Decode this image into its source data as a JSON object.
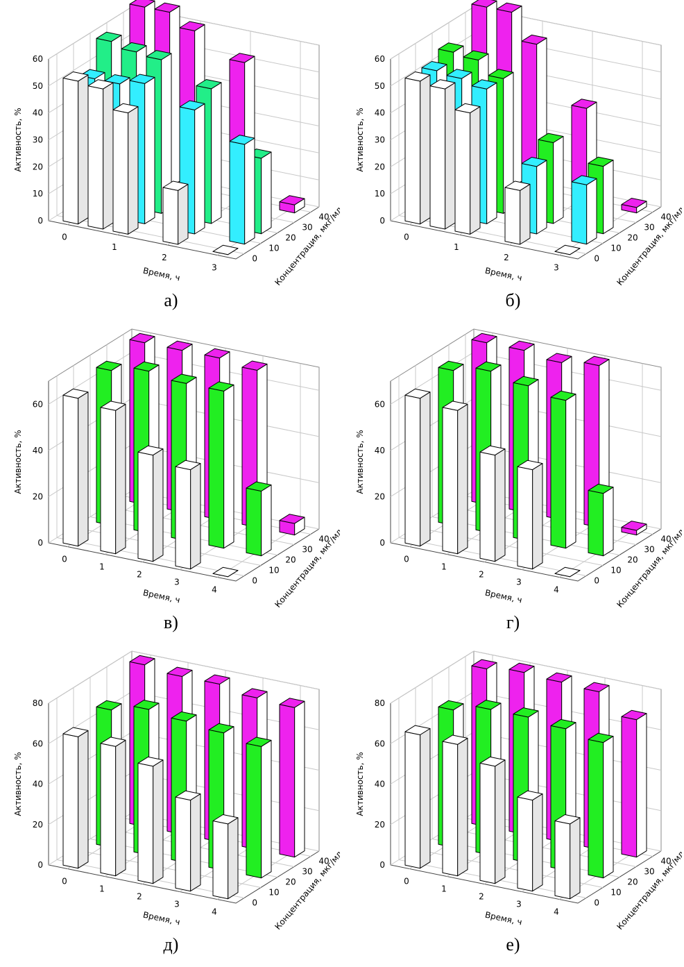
{
  "chart_data": [
    {
      "type": "bar3d",
      "label": "а)",
      "ylabel": "Активность, %",
      "xlabel": "Время, ч",
      "zlabel": "Концентрация, мкг/мл",
      "x": [
        0,
        0.5,
        1,
        2,
        3
      ],
      "xlim": [
        0,
        3
      ],
      "xticks": [
        0,
        1,
        2,
        3
      ],
      "ylim": [
        0,
        60
      ],
      "yticks": [
        0,
        10,
        20,
        30,
        40,
        50,
        60
      ],
      "zlim": [
        0,
        40
      ],
      "zticks": [
        0,
        10,
        20,
        30,
        40
      ],
      "series": [
        {
          "z": 0,
          "color": "#ffffff",
          "values": [
            53,
            52,
            45,
            20,
            0
          ]
        },
        {
          "z": 10,
          "color": "#33eeff",
          "values": [
            50,
            50,
            52,
            46,
            37
          ]
        },
        {
          "z": 20,
          "color": "#22ee88",
          "values": [
            60,
            58,
            57,
            50,
            28
          ]
        },
        {
          "z": 40,
          "color": "#ee22ee",
          "values": [
            65,
            65,
            60,
            52,
            3
          ]
        }
      ]
    },
    {
      "type": "bar3d",
      "label": "б)",
      "ylabel": "Активность, %",
      "xlabel": "Время, ч",
      "zlabel": "Концентрация, мкг/мл",
      "x": [
        0,
        0.5,
        1,
        2,
        3
      ],
      "xlim": [
        0,
        3
      ],
      "xticks": [
        0,
        1,
        2,
        3
      ],
      "ylim": [
        0,
        60
      ],
      "yticks": [
        0,
        10,
        20,
        30,
        40,
        50,
        60
      ],
      "zlim": [
        0,
        40
      ],
      "zticks": [
        0,
        10,
        20,
        30,
        40
      ],
      "series": [
        {
          "z": 0,
          "color": "#ffffff",
          "values": [
            53,
            52,
            45,
            20,
            0
          ]
        },
        {
          "z": 10,
          "color": "#33eeff",
          "values": [
            53,
            52,
            50,
            25,
            22
          ]
        },
        {
          "z": 20,
          "color": "#22ee22",
          "values": [
            56,
            55,
            50,
            30,
            25
          ]
        },
        {
          "z": 40,
          "color": "#ee22ee",
          "values": [
            65,
            65,
            55,
            35,
            2
          ]
        }
      ]
    },
    {
      "type": "bar3d",
      "label": "в)",
      "ylabel": "Активность, %",
      "xlabel": "Время, ч",
      "zlabel": "Концентрация, мкг/мл",
      "x": [
        0,
        1,
        2,
        3,
        4
      ],
      "xlim": [
        0,
        4
      ],
      "xticks": [
        0,
        1,
        2,
        3,
        4
      ],
      "ylim": [
        0,
        70
      ],
      "yticks": [
        0,
        20,
        40,
        60
      ],
      "zlim": [
        0,
        40
      ],
      "zticks": [
        0,
        10,
        20,
        30,
        40
      ],
      "series": [
        {
          "z": 0,
          "color": "#ffffff",
          "values": [
            64,
            62,
            46,
            43,
            0
          ]
        },
        {
          "z": 20,
          "color": "#22ee22",
          "values": [
            67,
            70,
            68,
            68,
            28
          ]
        },
        {
          "z": 40,
          "color": "#ee22ee",
          "values": [
            70,
            70,
            70,
            68,
            5
          ]
        }
      ]
    },
    {
      "type": "bar3d",
      "label": "г)",
      "ylabel": "Активность, %",
      "xlabel": "Время, ч",
      "zlabel": "Концентрация, мкг/мл",
      "x": [
        0,
        1,
        2,
        3,
        4
      ],
      "xlim": [
        0,
        4
      ],
      "xticks": [
        0,
        1,
        2,
        3,
        4
      ],
      "ylim": [
        0,
        70
      ],
      "yticks": [
        0,
        20,
        40,
        60
      ],
      "zlim": [
        0,
        40
      ],
      "zticks": [
        0,
        10,
        20,
        30,
        40
      ],
      "series": [
        {
          "z": 0,
          "color": "#ffffff",
          "values": [
            64,
            62,
            46,
            43,
            0
          ]
        },
        {
          "z": 20,
          "color": "#22ee22",
          "values": [
            67,
            70,
            67,
            64,
            27
          ]
        },
        {
          "z": 40,
          "color": "#ee22ee",
          "values": [
            70,
            70,
            68,
            70,
            2
          ]
        }
      ]
    },
    {
      "type": "bar3d",
      "label": "д)",
      "ylabel": "Активность, %",
      "xlabel": "Время, ч",
      "zlabel": "Концентрация, мкг/мл",
      "x": [
        0,
        1,
        2,
        3,
        4
      ],
      "xlim": [
        0,
        4
      ],
      "xticks": [
        0,
        1,
        2,
        3,
        4
      ],
      "ylim": [
        0,
        80
      ],
      "yticks": [
        0,
        20,
        40,
        60,
        80
      ],
      "zlim": [
        0,
        40
      ],
      "zticks": [
        0,
        10,
        20,
        30,
        40
      ],
      "series": [
        {
          "z": 0,
          "color": "#ffffff",
          "values": [
            65,
            64,
            58,
            45,
            37
          ]
        },
        {
          "z": 20,
          "color": "#22ee22",
          "values": [
            68,
            72,
            70,
            68,
            65
          ]
        },
        {
          "z": 40,
          "color": "#ee22ee",
          "values": [
            80,
            78,
            78,
            75,
            74
          ]
        }
      ]
    },
    {
      "type": "bar3d",
      "label": "е)",
      "ylabel": "Активность, %",
      "xlabel": "Время, ч",
      "zlabel": "Концентрация, мкг/мл",
      "x": [
        0,
        1,
        2,
        3,
        4
      ],
      "xlim": [
        0,
        4
      ],
      "xticks": [
        0,
        1,
        2,
        3,
        4
      ],
      "ylim": [
        0,
        80
      ],
      "yticks": [
        0,
        20,
        40,
        60,
        80
      ],
      "zlim": [
        0,
        40
      ],
      "zticks": [
        0,
        10,
        20,
        30,
        40
      ],
      "series": [
        {
          "z": 0,
          "color": "#ffffff",
          "values": [
            66,
            65,
            58,
            45,
            37
          ]
        },
        {
          "z": 20,
          "color": "#22ee22",
          "values": [
            68,
            72,
            72,
            70,
            67
          ]
        },
        {
          "z": 40,
          "color": "#ee22ee",
          "values": [
            78,
            80,
            79,
            78,
            68
          ]
        }
      ]
    }
  ]
}
